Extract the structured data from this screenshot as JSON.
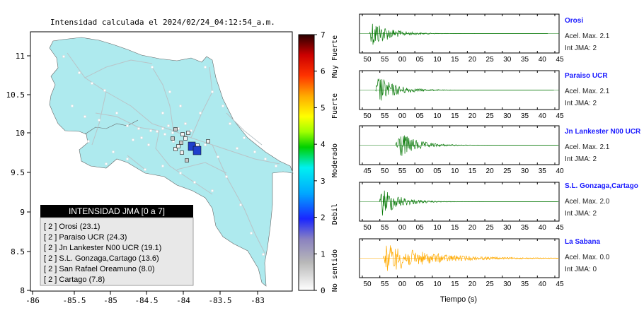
{
  "map": {
    "title": "Intensidad calculada el 2024/02/24_04:12:54_a.m.",
    "lon_ticks": [
      "-86",
      "-85.5",
      "-85",
      "-84.5",
      "-84",
      "-83.5",
      "-83"
    ],
    "lat_ticks": [
      "11",
      "10.5",
      "10",
      "9.5",
      "9",
      "8.5",
      "8"
    ],
    "legend_title": "INTENSIDAD JMA [0 a 7]",
    "legend_rows": [
      "[ 2 ] Orosi (23.1)",
      "[ 2 ] Paraiso UCR (24.3)",
      "[ 2 ] Jn Lankester N00 UCR (19.1)",
      "[ 2 ] S.L. Gonzaga,Cartago (13.6)",
      "[ 2 ] San Rafael Oreamuno (8.0)",
      "[ 2 ] Cartago (7.8)"
    ],
    "land_color": "#aeeaee",
    "epicenter_color": "#1f3fcc"
  },
  "colorbar": {
    "ticks": [
      "0",
      "1",
      "2",
      "3",
      "4",
      "5",
      "6",
      "7"
    ],
    "labels": [
      "No sentido",
      "Debil",
      "Moderado",
      "Fuerte",
      "Muy Fuerte"
    ]
  },
  "chart_data": {
    "type": "line",
    "xlabel": "Tiempo (s)",
    "stations": [
      {
        "name": "Orosi",
        "accel": "Acel. Max. 2.1",
        "jma": "Int JMA: 2",
        "color": "#0a7a0a",
        "ticks": [
          "50",
          "55",
          "00",
          "05",
          "10",
          "15",
          "20",
          "25",
          "30",
          "35",
          "40",
          "45"
        ],
        "onset": 0.05
      },
      {
        "name": "Paraiso UCR",
        "accel": "Acel. Max. 2.1",
        "jma": "Int JMA: 2",
        "color": "#0a7a0a",
        "ticks": [
          "50",
          "55",
          "00",
          "05",
          "10",
          "15",
          "20",
          "25",
          "30",
          "35",
          "40",
          "45"
        ],
        "onset": 0.08
      },
      {
        "name": "Jn Lankester N00 UCR",
        "accel": "Acel. Max. 2.1",
        "jma": "Int JMA: 2",
        "color": "#0a7a0a",
        "ticks": [
          "45",
          "50",
          "55",
          "00",
          "05",
          "10",
          "15",
          "20",
          "25",
          "30",
          "35",
          "40"
        ],
        "onset": 0.18
      },
      {
        "name": "S.L. Gonzaga,Cartago",
        "accel": "Acel. Max. 2.0",
        "jma": "Int JMA: 2",
        "color": "#0a7a0a",
        "ticks": [
          "50",
          "55",
          "00",
          "05",
          "10",
          "15",
          "20",
          "25",
          "30",
          "35",
          "40",
          "45"
        ],
        "onset": 0.1
      },
      {
        "name": "La Sabana",
        "accel": "Acel. Max. 0.0",
        "jma": "Int JMA: 0",
        "color": "#ffaa00",
        "ticks": [
          "50",
          "55",
          "00",
          "05",
          "10",
          "15",
          "20",
          "25",
          "30",
          "35",
          "40",
          "45"
        ],
        "onset": 0.12
      }
    ]
  }
}
